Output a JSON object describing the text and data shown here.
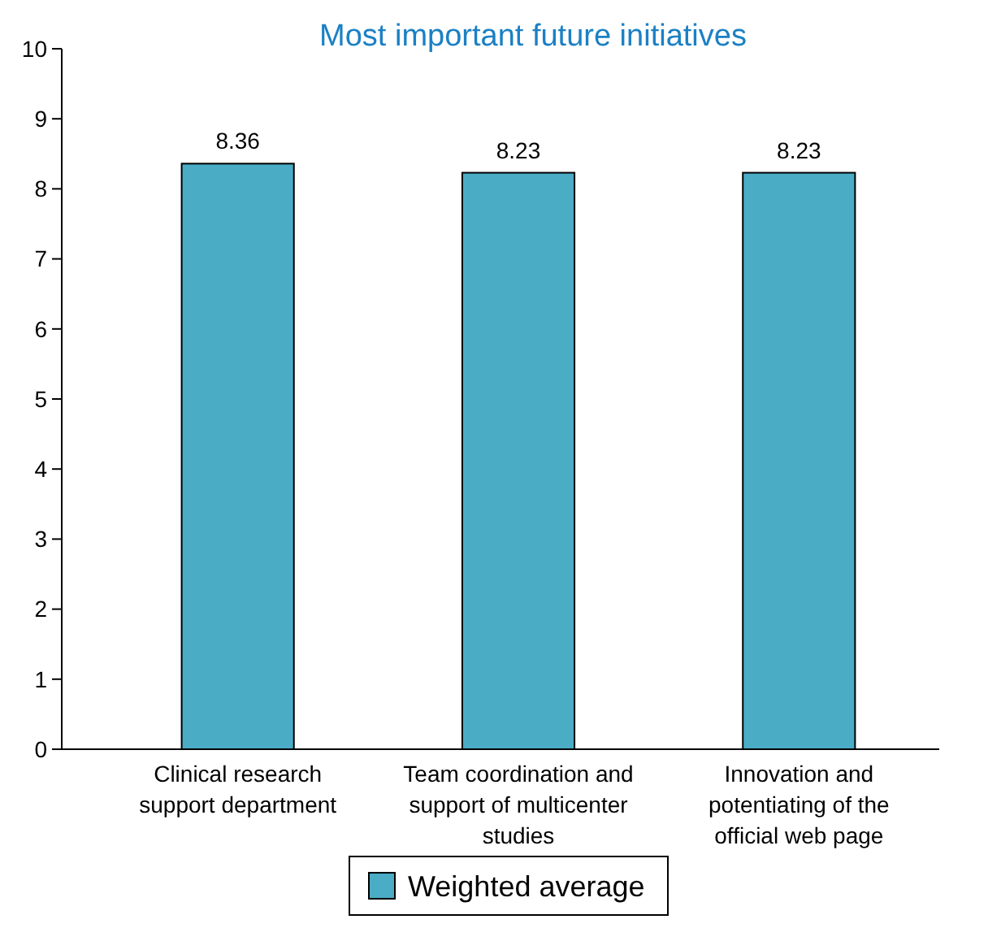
{
  "chart_data": {
    "type": "bar",
    "title": "Most important future initiatives",
    "categories": [
      "Clinical research support department",
      "Team coordination and support of multicenter studies",
      "Innovation and potentiating of the official web page"
    ],
    "series": [
      {
        "name": "Weighted average",
        "color": "#4bacc6",
        "values": [
          8.36,
          8.23,
          8.23
        ]
      }
    ],
    "ylim": [
      0,
      10
    ],
    "yticks": [
      0,
      1,
      2,
      3,
      4,
      5,
      6,
      7,
      8,
      9,
      10
    ],
    "data_labels": true,
    "legend": "bottom",
    "grid": false
  }
}
